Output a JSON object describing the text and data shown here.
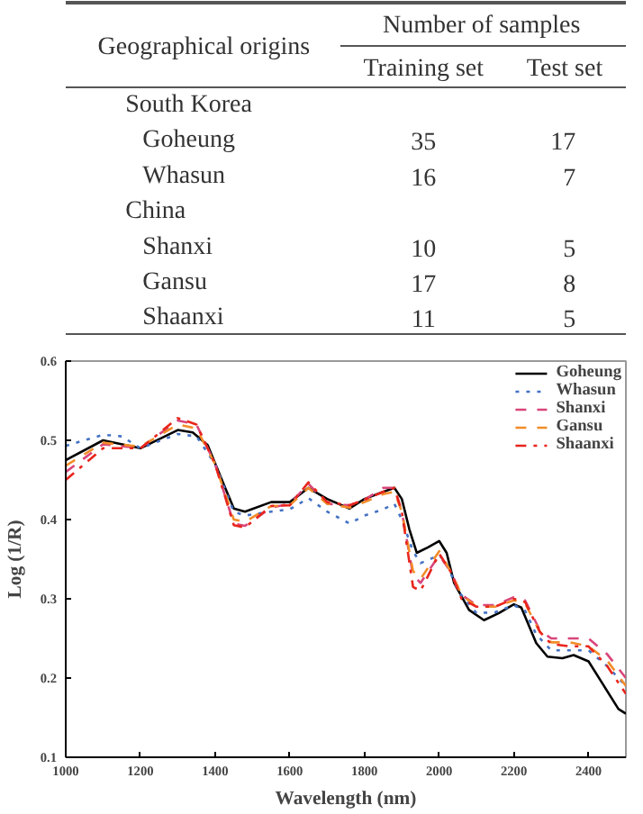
{
  "chart_data": [
    {
      "type": "other",
      "annotations": [
        "Geographical origins",
        "Number of samples"
      ],
      "categories": [
        "South Korea",
        "Goheung",
        "Whasun",
        "China",
        "Shanxi",
        "Gansu",
        "Shaanxi"
      ],
      "data_labels": true,
      "series": [
        {
          "name": "Training set",
          "values": [
            null,
            35,
            16,
            null,
            10,
            17,
            11
          ]
        },
        {
          "name": "Test set",
          "values": [
            null,
            17,
            7,
            null,
            5,
            8,
            5
          ]
        }
      ]
    },
    {
      "type": "line",
      "xlabel": "Wavelength (nm)",
      "ylabel": "Log (1/R)",
      "xlim": [
        1000,
        2500
      ],
      "ylim": [
        0.1,
        0.6
      ],
      "xticks": [
        1000,
        1200,
        1400,
        1600,
        1800,
        2000,
        2200,
        2400
      ],
      "yticks": [
        0.1,
        0.2,
        0.3,
        0.4,
        0.5,
        0.6
      ],
      "grid": false,
      "legend": "top right",
      "marker": "none",
      "series": [
        {
          "name": "Goheung",
          "color": "#000000",
          "line_style": "solid",
          "x": [
            1000,
            1100,
            1200,
            1300,
            1340,
            1380,
            1420,
            1450,
            1480,
            1550,
            1600,
            1650,
            1700,
            1760,
            1800,
            1850,
            1880,
            1900,
            1920,
            1940,
            1970,
            2000,
            2020,
            2040,
            2080,
            2120,
            2160,
            2200,
            2220,
            2260,
            2290,
            2330,
            2360,
            2400,
            2440,
            2480,
            2500
          ],
          "values": [
            0.475,
            0.5,
            0.49,
            0.513,
            0.51,
            0.494,
            0.448,
            0.414,
            0.41,
            0.422,
            0.422,
            0.44,
            0.426,
            0.414,
            0.426,
            0.435,
            0.44,
            0.426,
            0.388,
            0.358,
            0.365,
            0.373,
            0.358,
            0.32,
            0.286,
            0.273,
            0.282,
            0.293,
            0.289,
            0.244,
            0.227,
            0.225,
            0.229,
            0.221,
            0.191,
            0.161,
            0.155
          ]
        },
        {
          "name": "Whasun",
          "color": "#4472c4",
          "line_style": "dotted",
          "x": [
            1000,
            1100,
            1150,
            1200,
            1300,
            1350,
            1400,
            1450,
            1480,
            1550,
            1600,
            1650,
            1700,
            1760,
            1800,
            1850,
            1880,
            1900,
            1930,
            1950,
            2000,
            2020,
            2050,
            2100,
            2150,
            2200,
            2230,
            2260,
            2300,
            2350,
            2400,
            2450,
            2500
          ],
          "values": [
            0.493,
            0.507,
            0.505,
            0.49,
            0.508,
            0.505,
            0.47,
            0.41,
            0.405,
            0.41,
            0.413,
            0.427,
            0.41,
            0.395,
            0.405,
            0.413,
            0.42,
            0.4,
            0.36,
            0.345,
            0.355,
            0.345,
            0.31,
            0.282,
            0.283,
            0.292,
            0.285,
            0.255,
            0.235,
            0.235,
            0.235,
            0.215,
            0.19
          ]
        },
        {
          "name": "Shanxi",
          "color": "#d9457a",
          "line_style": "dashed",
          "x": [
            1000,
            1100,
            1200,
            1300,
            1350,
            1400,
            1450,
            1480,
            1550,
            1600,
            1650,
            1700,
            1760,
            1800,
            1850,
            1880,
            1900,
            1930,
            1950,
            2000,
            2030,
            2060,
            2100,
            2150,
            2200,
            2230,
            2270,
            2300,
            2350,
            2400,
            2450,
            2500
          ],
          "values": [
            0.46,
            0.495,
            0.49,
            0.525,
            0.52,
            0.47,
            0.395,
            0.392,
            0.415,
            0.42,
            0.445,
            0.42,
            0.418,
            0.425,
            0.44,
            0.44,
            0.41,
            0.33,
            0.32,
            0.355,
            0.335,
            0.305,
            0.292,
            0.292,
            0.302,
            0.298,
            0.26,
            0.25,
            0.25,
            0.25,
            0.23,
            0.2
          ]
        },
        {
          "name": "Gansu",
          "color": "#f28c28",
          "line_style": "dashed",
          "x": [
            1000,
            1100,
            1200,
            1300,
            1350,
            1400,
            1450,
            1480,
            1550,
            1600,
            1650,
            1700,
            1760,
            1800,
            1850,
            1880,
            1900,
            1930,
            1950,
            2000,
            2030,
            2060,
            2100,
            2150,
            2200,
            2230,
            2270,
            2300,
            2350,
            2400,
            2450,
            2500
          ],
          "values": [
            0.468,
            0.497,
            0.492,
            0.52,
            0.515,
            0.47,
            0.4,
            0.397,
            0.417,
            0.418,
            0.44,
            0.42,
            0.415,
            0.422,
            0.432,
            0.435,
            0.41,
            0.335,
            0.325,
            0.36,
            0.335,
            0.305,
            0.29,
            0.29,
            0.298,
            0.294,
            0.258,
            0.245,
            0.245,
            0.24,
            0.222,
            0.19
          ]
        },
        {
          "name": "Shaanxi",
          "color": "#e8251c",
          "line_style": "dashdot",
          "x": [
            1000,
            1100,
            1200,
            1300,
            1350,
            1400,
            1450,
            1480,
            1550,
            1600,
            1650,
            1700,
            1760,
            1800,
            1850,
            1880,
            1900,
            1930,
            1950,
            2000,
            2030,
            2060,
            2100,
            2150,
            2200,
            2230,
            2270,
            2300,
            2350,
            2400,
            2450,
            2500
          ],
          "values": [
            0.45,
            0.49,
            0.49,
            0.528,
            0.52,
            0.47,
            0.393,
            0.39,
            0.417,
            0.418,
            0.447,
            0.422,
            0.418,
            0.425,
            0.435,
            0.44,
            0.41,
            0.315,
            0.31,
            0.357,
            0.335,
            0.3,
            0.29,
            0.29,
            0.3,
            0.296,
            0.258,
            0.243,
            0.24,
            0.24,
            0.215,
            0.18
          ]
        }
      ]
    }
  ]
}
